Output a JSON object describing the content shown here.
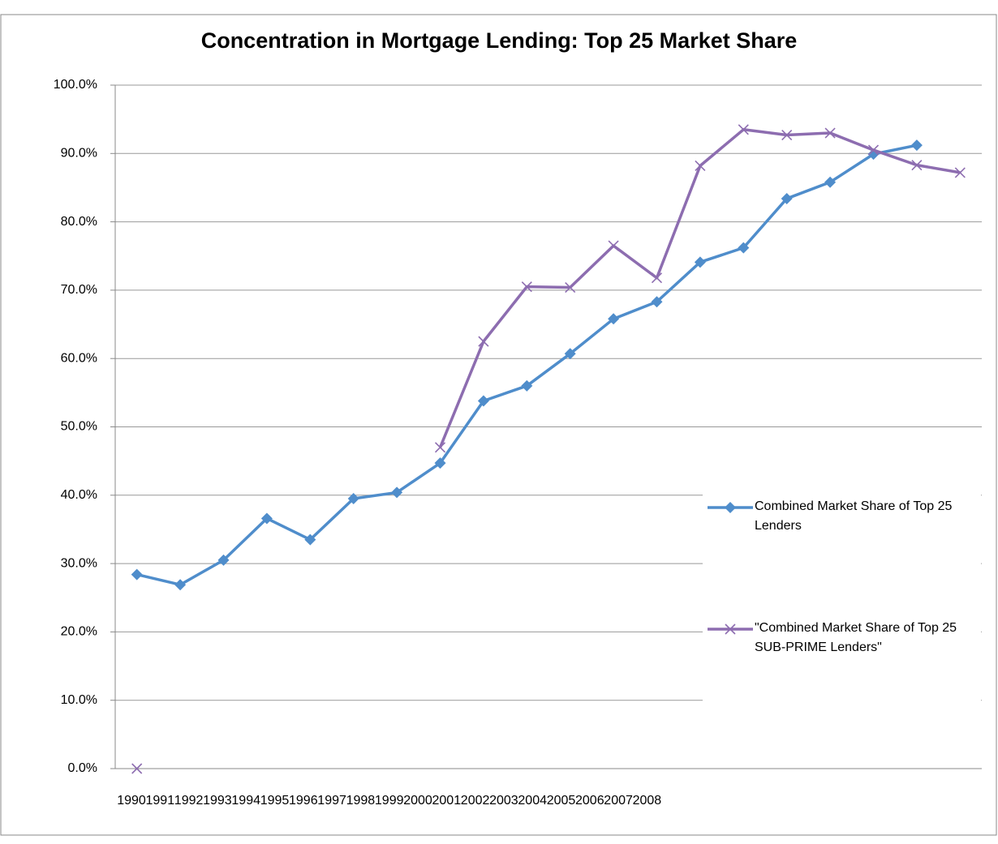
{
  "chart_data": {
    "type": "line",
    "title": "Concentration in Mortgage Lending: Top 25 Market Share",
    "categories": [
      "1990",
      "1991",
      "1992",
      "1993",
      "1994",
      "1995",
      "1996",
      "1997",
      "1998",
      "1999",
      "2000",
      "2001",
      "2002",
      "2003",
      "2004",
      "2005",
      "2006",
      "2007",
      "2008",
      null
    ],
    "series": [
      {
        "name": "Combined Market Share of Top 25 Lenders",
        "color": "#4f8dcb",
        "marker": "diamond",
        "values": [
          28.4,
          26.9,
          30.5,
          36.6,
          33.5,
          39.5,
          40.4,
          44.7,
          53.8,
          56.0,
          60.7,
          65.8,
          68.3,
          74.1,
          76.2,
          83.4,
          85.8,
          89.9,
          91.2,
          null
        ]
      },
      {
        "name": "\"Combined Market Share of Top 25 SUB-PRIME Lenders\"",
        "color": "#8d6db0",
        "marker": "x",
        "values": [
          0.0,
          null,
          null,
          null,
          null,
          null,
          null,
          47.0,
          62.5,
          70.5,
          70.4,
          76.5,
          71.8,
          88.2,
          93.5,
          92.7,
          93.0,
          90.5,
          88.3,
          87.2
        ]
      }
    ],
    "ylim": [
      0,
      100
    ],
    "yticks": [
      {
        "value": 0,
        "label": "0.0%"
      },
      {
        "value": 10,
        "label": "10.0%"
      },
      {
        "value": 20,
        "label": "20.0%"
      },
      {
        "value": 30,
        "label": "30.0%"
      },
      {
        "value": 40,
        "label": "40.0%"
      },
      {
        "value": 50,
        "label": "50.0%"
      },
      {
        "value": 60,
        "label": "60.0%"
      },
      {
        "value": 70,
        "label": "70.0%"
      },
      {
        "value": 80,
        "label": "80.0%"
      },
      {
        "value": 90,
        "label": "90.0%"
      },
      {
        "value": 100,
        "label": "100.0%"
      }
    ],
    "grid": true,
    "legend": "right"
  }
}
